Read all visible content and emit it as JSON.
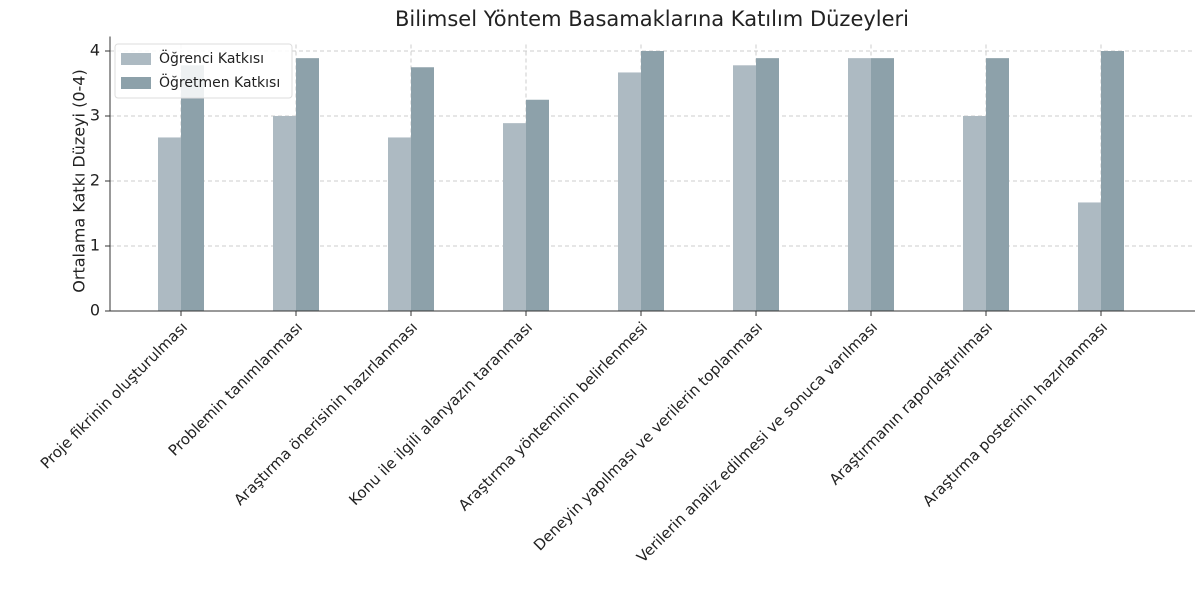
{
  "chart_data": {
    "type": "bar",
    "title": "Bilimsel Yöntem Basamaklarına Katılım Düzeyleri",
    "y_label": "Ortalama Katkı Düzeyi (0-4)",
    "categories": [
      "Proje fikrinin oluşturulması",
      "Problemin tanımlanması",
      "Araştırma önerisinin hazırlanması",
      "Konu ile ilgili alanyazın taranması",
      "Araştırma yönteminin belirlenmesi",
      "Deneyin yapılması ve verilerin toplanması",
      "Verilerin analiz edilmesi ve sonuca varılması",
      "Araştırmanın raporlaştırılması",
      "Araştırma posterinin hazırlanması"
    ],
    "series": [
      {
        "name": "Öğrenci Katkısı",
        "color": "#adbac2",
        "values": [
          2.67,
          3.0,
          2.67,
          2.89,
          3.67,
          3.78,
          3.89,
          3.0,
          1.67
        ]
      },
      {
        "name": "Öğretmen Katkısı",
        "color": "#8da1aa",
        "values": [
          3.78,
          3.89,
          3.75,
          3.25,
          4.0,
          3.89,
          3.89,
          3.89,
          4.0
        ]
      }
    ],
    "ylim": [
      0,
      4.1
    ],
    "yticks": [
      0,
      1,
      2,
      3,
      4
    ],
    "grid": true,
    "legend": "upper left"
  }
}
